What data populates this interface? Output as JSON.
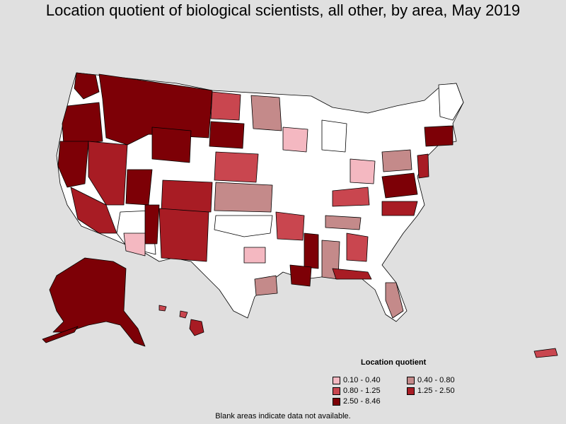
{
  "title": "Location quotient of biological scientists, all other, by area, May 2019",
  "legend": {
    "title": "Location quotient",
    "items": [
      {
        "label": "0.10 - 0.40",
        "color": "#f4b8c1"
      },
      {
        "label": "0.40 - 0.80",
        "color": "#c48a8a"
      },
      {
        "label": "0.80 - 1.25",
        "color": "#c9464f"
      },
      {
        "label": "1.25 - 2.50",
        "color": "#a81c24"
      },
      {
        "label": "2.50 - 8.46",
        "color": "#7d0006"
      }
    ]
  },
  "footnote": "Blank areas indicate data not available.",
  "colors": {
    "background": "#e0e0e0",
    "no_data": "#ffffff",
    "border": "#000000"
  }
}
